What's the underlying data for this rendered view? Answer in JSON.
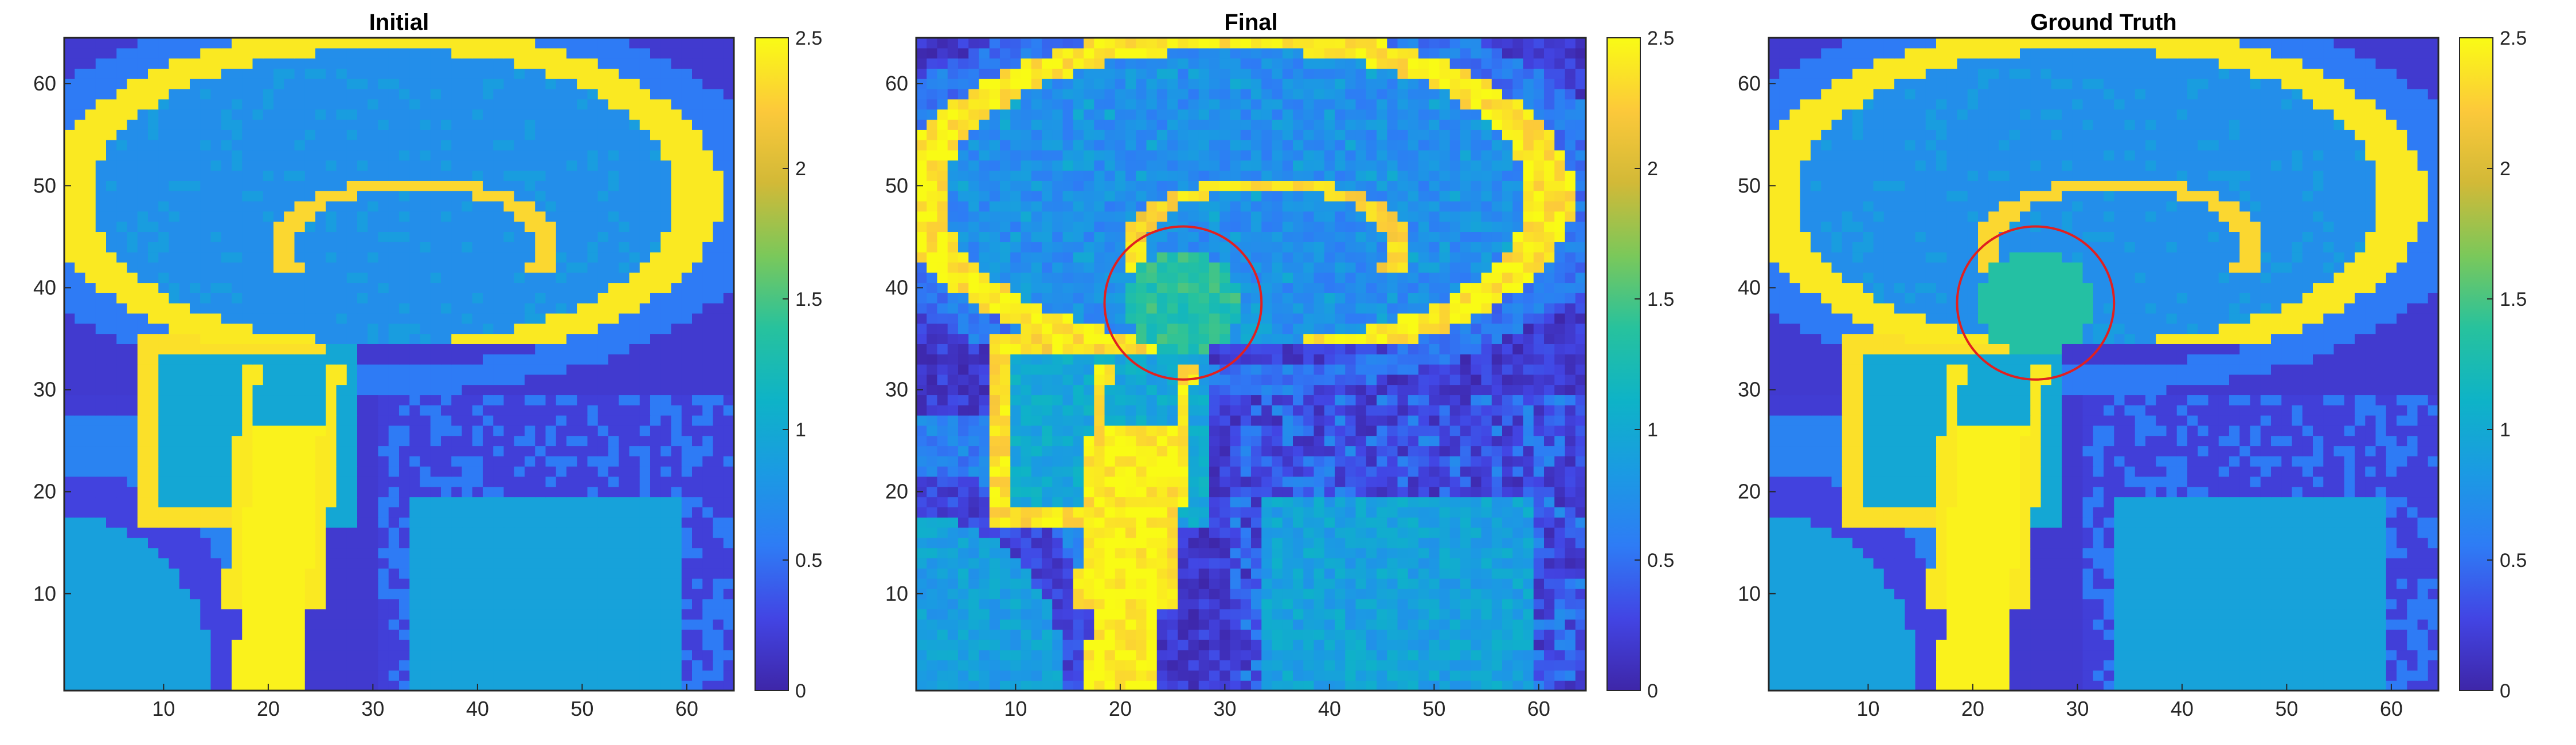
{
  "figure": {
    "panels": [
      {
        "id": "initial",
        "title": "Initial",
        "marker": false
      },
      {
        "id": "final",
        "title": "Final",
        "marker": true
      },
      {
        "id": "ground-truth",
        "title": "Ground Truth",
        "marker": true
      }
    ]
  },
  "chart_data": [
    {
      "type": "heatmap",
      "title": "Initial",
      "xlabel": "",
      "ylabel": "",
      "xlim": [
        0.5,
        64.5
      ],
      "ylim": [
        0.5,
        64.5
      ],
      "xticks": [
        10,
        20,
        30,
        40,
        50,
        60
      ],
      "yticks": [
        10,
        20,
        30,
        40,
        50,
        60
      ],
      "grid": 64,
      "colorbar": {
        "range": [
          0,
          2.5
        ],
        "ticks": [
          "0",
          "0.5",
          "1",
          "1.5",
          "2",
          "2.5"
        ],
        "colormap": "parula"
      },
      "marker_circle": null
    },
    {
      "type": "heatmap",
      "title": "Final",
      "xlabel": "",
      "ylabel": "",
      "xlim": [
        0.5,
        64.5
      ],
      "ylim": [
        0.5,
        64.5
      ],
      "xticks": [
        10,
        20,
        30,
        40,
        50,
        60
      ],
      "yticks": [
        10,
        20,
        30,
        40,
        50,
        60
      ],
      "grid": 64,
      "colorbar": {
        "range": [
          0,
          2.5
        ],
        "ticks": [
          "0",
          "0.5",
          "1",
          "1.5",
          "2",
          "2.5"
        ],
        "colormap": "parula"
      },
      "marker_circle": {
        "cx": 26,
        "cy": 38.5,
        "r": 7.5,
        "color": "#e02020"
      }
    },
    {
      "type": "heatmap",
      "title": "Ground Truth",
      "xlabel": "",
      "ylabel": "",
      "xlim": [
        0.5,
        64.5
      ],
      "ylim": [
        0.5,
        64.5
      ],
      "xticks": [
        10,
        20,
        30,
        40,
        50,
        60
      ],
      "yticks": [
        10,
        20,
        30,
        40,
        50,
        60
      ],
      "grid": 64,
      "colorbar": {
        "range": [
          0,
          2.5
        ],
        "ticks": [
          "0",
          "0.5",
          "1",
          "1.5",
          "2",
          "2.5"
        ],
        "colormap": "parula"
      },
      "marker_circle": {
        "cx": 26,
        "cy": 38.5,
        "r": 7.5,
        "color": "#e02020"
      }
    }
  ],
  "colors": {
    "parula": [
      "#3e26a8",
      "#4245e4",
      "#2e7cf5",
      "#1b9ae3",
      "#0eb3c7",
      "#27c29d",
      "#7bc85a",
      "#d2b937",
      "#fcc93a",
      "#f9fb15"
    ],
    "axis": "#262626",
    "background": "#ffffff"
  }
}
